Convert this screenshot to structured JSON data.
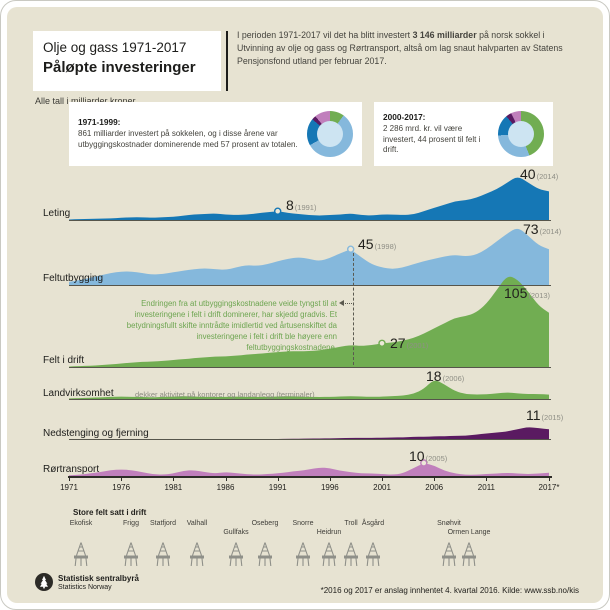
{
  "header": {
    "title_line1": "Olje og gass 1971-2017",
    "title_line2": "Påløpte investeringer",
    "subtitle": "Alle tall i milliarder kroner",
    "intro_pre": "I perioden 1971-2017 vil det ha blitt investert ",
    "intro_bold": "3 146 milliarder",
    "intro_post": " på norsk sokkel i Utvinning av olje og gass og Rørtransport, altså om lag snaut halvparten av Statens Pensjonsfond utland per februar 2017."
  },
  "summary_boxes": [
    {
      "title": "1971-1999:",
      "text": "861 milliarder investert på sokkelen, og i disse årene var utbyggingskostnader dominerende med 57 prosent av totalen.",
      "donut": [
        {
          "label": "Felt i drift",
          "color": "#71ad52",
          "pct": 10
        },
        {
          "label": "Feltutbygging",
          "color": "#85b8dc",
          "pct": 57
        },
        {
          "label": "Leting",
          "color": "#1577b5",
          "pct": 19
        },
        {
          "label": "Nedstenging og fjerning",
          "color": "#5a1a61",
          "pct": 3
        },
        {
          "label": "Rørtransport",
          "color": "#c07fbc",
          "pct": 11
        }
      ]
    },
    {
      "title": "2000-2017:",
      "text": "2 286 mrd. kr. vil være investert, 44 prosent til felt i drift.",
      "donut": [
        {
          "label": "Felt i drift",
          "color": "#71ad52",
          "pct": 44
        },
        {
          "label": "Feltutbygging",
          "color": "#85b8dc",
          "pct": 30
        },
        {
          "label": "Leting",
          "color": "#1577b5",
          "pct": 15
        },
        {
          "label": "Nedstenging og fjerning",
          "color": "#5a1a61",
          "pct": 4
        },
        {
          "label": "Rørtransport",
          "color": "#c07fbc",
          "pct": 7
        }
      ]
    }
  ],
  "chart_data": {
    "type": "area",
    "unit": "milliarder kroner",
    "x_start": 1971,
    "x_end": 2017,
    "x_ticks": [
      {
        "label": "1971",
        "year": 1971
      },
      {
        "label": "1976",
        "year": 1976
      },
      {
        "label": "1981",
        "year": 1981
      },
      {
        "label": "1986",
        "year": 1986
      },
      {
        "label": "1991",
        "year": 1991
      },
      {
        "label": "1996",
        "year": 1996
      },
      {
        "label": "2001",
        "year": 2001
      },
      {
        "label": "2006",
        "year": 2006
      },
      {
        "label": "2011",
        "year": 2011
      },
      {
        "label": "2017*",
        "year": 2017
      }
    ],
    "series": [
      {
        "id": "leting",
        "name": "Leting",
        "color": "#1577b5",
        "values": [
          0.5,
          0.8,
          1,
          1.2,
          1.5,
          2,
          2.5,
          2.5,
          2,
          2.5,
          3,
          4,
          5,
          5.5,
          6,
          5,
          4.5,
          5,
          6,
          7,
          8,
          6.5,
          5.5,
          4.5,
          4,
          4.5,
          5,
          6,
          4.5,
          4,
          5,
          5,
          4.5,
          5,
          8,
          11,
          14,
          17,
          18,
          20,
          24,
          28,
          34,
          40,
          34,
          28,
          26
        ],
        "peak": {
          "value": "40",
          "year_label": "(2014)",
          "year": 2014
        },
        "marker": {
          "value": "8",
          "year_label": "(1991)",
          "year": 1991
        }
      },
      {
        "id": "feltutbygging",
        "name": "Feltutbygging",
        "color": "#85b8dc",
        "values": [
          4,
          6,
          9,
          12,
          15,
          17,
          17,
          15,
          13,
          14,
          16,
          18,
          20,
          21,
          20,
          19,
          22,
          25,
          24,
          26,
          30,
          33,
          35,
          33,
          30,
          34,
          40,
          45,
          35,
          26,
          22,
          20,
          22,
          26,
          30,
          33,
          36,
          38,
          36,
          38,
          45,
          55,
          65,
          73,
          62,
          50,
          45
        ],
        "peak": {
          "value": "73",
          "year_label": "(2014)",
          "year": 2014
        },
        "marker": {
          "value": "45",
          "year_label": "(1998)",
          "year": 1998
        }
      },
      {
        "id": "felt-i-drift",
        "name": "Felt i drift",
        "color": "#71ad52",
        "values": [
          0.5,
          1,
          1.5,
          2,
          3,
          4,
          5,
          6,
          6,
          7,
          8,
          9,
          10,
          11,
          12,
          12,
          13,
          14,
          15,
          16,
          17,
          18,
          18,
          18,
          19,
          21,
          23,
          25,
          24,
          25,
          27,
          28,
          30,
          33,
          38,
          44,
          50,
          56,
          58,
          62,
          72,
          88,
          105,
          100,
          86,
          70,
          62
        ],
        "peak": {
          "value": "105",
          "year_label": "(2013)",
          "year": 2013
        },
        "marker": {
          "value": "27",
          "year_label": "(2001)",
          "year": 2001
        }
      },
      {
        "id": "landvirksomhet",
        "name": "Landvirksomhet",
        "note": "dekker aktivitet på kontorer og landanlegg (terminaler)",
        "color": "#71ad52",
        "values": [
          0.5,
          0.8,
          1.2,
          1.5,
          2,
          2.2,
          2,
          1.8,
          1.5,
          1.8,
          2.2,
          2.5,
          2.2,
          2,
          1.8,
          2,
          2.2,
          2,
          1.8,
          2,
          2.2,
          2.5,
          2.2,
          2,
          1.8,
          2,
          2.2,
          2.5,
          2.2,
          2,
          2.2,
          2.5,
          3,
          4.5,
          9,
          18,
          13,
          7,
          4.5,
          4,
          4.2,
          5,
          6,
          5,
          4.5,
          4.5,
          4
        ],
        "peak": {
          "value": "18",
          "year_label": "(2006)",
          "year": 2006
        }
      },
      {
        "id": "nedstenging",
        "name": "Nedstenging og fjerning",
        "color": "#5a1a61",
        "values": [
          0,
          0,
          0,
          0,
          0,
          0,
          0,
          0,
          0,
          0,
          0,
          0,
          0,
          0,
          0,
          0,
          0,
          0,
          0,
          0,
          0,
          0.2,
          0.3,
          0.5,
          0.5,
          0.6,
          0.8,
          1,
          1,
          1,
          1.2,
          1.5,
          1.5,
          2,
          2,
          2.5,
          2.5,
          3,
          3,
          4,
          5,
          6,
          7,
          9,
          11,
          10,
          9
        ],
        "peak": {
          "value": "11",
          "year_label": "(2015)",
          "year": 2015
        }
      },
      {
        "id": "rortransport",
        "name": "Rørtransport",
        "color": "#c07fbc",
        "values": [
          0.5,
          1,
          2,
          3,
          4.5,
          5,
          4.5,
          3,
          1.5,
          1,
          2,
          4,
          4.5,
          3,
          2,
          3,
          2.2,
          1.5,
          1,
          1.5,
          2,
          3,
          4,
          5,
          6.5,
          6,
          4,
          3,
          2,
          2,
          1.5,
          1,
          2,
          6,
          10,
          8,
          4,
          2,
          1,
          1,
          1.5,
          2,
          2.5,
          2,
          1.5,
          2,
          2.5
        ],
        "marker": {
          "value": "10",
          "year_label": "(2005)",
          "year": 2005
        }
      }
    ],
    "annotation": {
      "text": "Endringen fra at utbyggingskostnadene veide tyngst til at investeringene i felt i drift dominerer, har skjedd gradvis. Et betydningsfullt skifte inntrådte imidlertid ved årtusenskiftet da investeringene i felt i drift ble høyere enn feltutbyggingskostnadene."
    }
  },
  "platforms": {
    "heading": "Store felt satt i drift",
    "items": [
      {
        "label": "Ekofisk",
        "row": 1
      },
      {
        "label": "Frigg",
        "row": 1
      },
      {
        "label": "Statfjord",
        "row": 1
      },
      {
        "label": "Valhall",
        "row": 1
      },
      {
        "label": "Gullfaks",
        "row": 2
      },
      {
        "label": "Oseberg",
        "row": 1
      },
      {
        "label": "Snorre",
        "row": 1
      },
      {
        "label": "Heidrun",
        "row": 2
      },
      {
        "label": "Troll",
        "row": 1
      },
      {
        "label": "Åsgård",
        "row": 1
      },
      {
        "label": "Snøhvit",
        "row": 1
      },
      {
        "label": "Ormen Lange",
        "row": 2
      }
    ]
  },
  "footer": {
    "org_line1": "Statistisk sentralbyrå",
    "org_line2": "Statistics Norway",
    "footnote": "*2016 og 2017 er anslag innhentet 4. kvartal 2016. Kilde: www.ssb.no/kis"
  }
}
